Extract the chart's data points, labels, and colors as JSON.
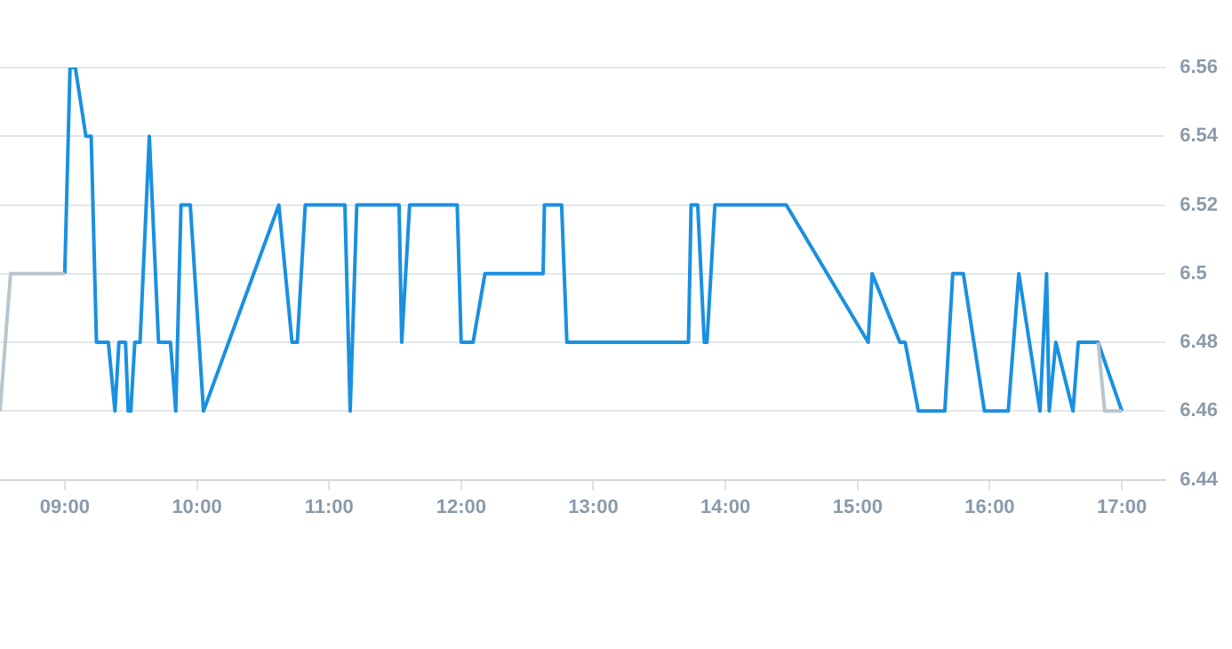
{
  "chart_data": {
    "type": "line",
    "xlim": [
      8.51,
      17.33
    ],
    "ylim": [
      6.44,
      6.56
    ],
    "xticks": [
      {
        "value": 9,
        "label": "09:00"
      },
      {
        "value": 10,
        "label": "10:00"
      },
      {
        "value": 11,
        "label": "11:00"
      },
      {
        "value": 12,
        "label": "12:00"
      },
      {
        "value": 13,
        "label": "13:00"
      },
      {
        "value": 14,
        "label": "14:00"
      },
      {
        "value": 15,
        "label": "15:00"
      },
      {
        "value": 16,
        "label": "16:00"
      },
      {
        "value": 17,
        "label": "17:00"
      }
    ],
    "yticks": [
      6.44,
      6.46,
      6.48,
      6.5,
      6.52,
      6.54,
      6.56
    ],
    "grid": "y",
    "legend": false,
    "marker": "none",
    "line_style": "solid",
    "series": [
      {
        "color": "#b9c5cd",
        "x": [
          8.51,
          8.59,
          9.0,
          12.0,
          16.82,
          16.87,
          17.0
        ],
        "values": [
          6.46,
          6.5,
          6.5,
          null,
          6.48,
          6.46,
          6.46
        ]
      },
      {
        "color": "#1a90e0",
        "x": [
          9.0,
          9.04,
          9.08,
          9.16,
          9.2,
          9.24,
          9.33,
          9.38,
          9.41,
          9.46,
          9.48,
          9.5,
          9.53,
          9.57,
          9.64,
          9.71,
          9.8,
          9.84,
          9.88,
          9.95,
          10.05,
          10.62,
          10.72,
          10.76,
          10.82,
          11.12,
          11.16,
          11.21,
          11.53,
          11.55,
          11.61,
          11.97,
          12.0,
          12.09,
          12.18,
          12.62,
          12.63,
          12.76,
          12.8,
          13.72,
          13.74,
          13.79,
          13.84,
          13.86,
          13.92,
          14.46,
          15.08,
          15.11,
          15.32,
          15.36,
          15.46,
          15.66,
          15.72,
          15.8,
          15.96,
          16.14,
          16.22,
          16.38,
          16.43,
          16.45,
          16.5,
          16.63,
          16.67,
          16.82,
          17.0
        ],
        "values": [
          6.5,
          6.56,
          6.56,
          6.54,
          6.54,
          6.48,
          6.48,
          6.46,
          6.48,
          6.48,
          6.46,
          6.46,
          6.48,
          6.48,
          6.54,
          6.48,
          6.48,
          6.46,
          6.52,
          6.52,
          6.46,
          6.52,
          6.48,
          6.48,
          6.52,
          6.52,
          6.46,
          6.52,
          6.52,
          6.48,
          6.52,
          6.52,
          6.48,
          6.48,
          6.5,
          6.5,
          6.52,
          6.52,
          6.48,
          6.48,
          6.52,
          6.52,
          6.48,
          6.48,
          6.52,
          6.52,
          6.48,
          6.5,
          6.48,
          6.48,
          6.46,
          6.46,
          6.5,
          6.5,
          6.46,
          6.46,
          6.5,
          6.46,
          6.5,
          6.46,
          6.48,
          6.46,
          6.48,
          6.48,
          6.46
        ]
      }
    ]
  }
}
